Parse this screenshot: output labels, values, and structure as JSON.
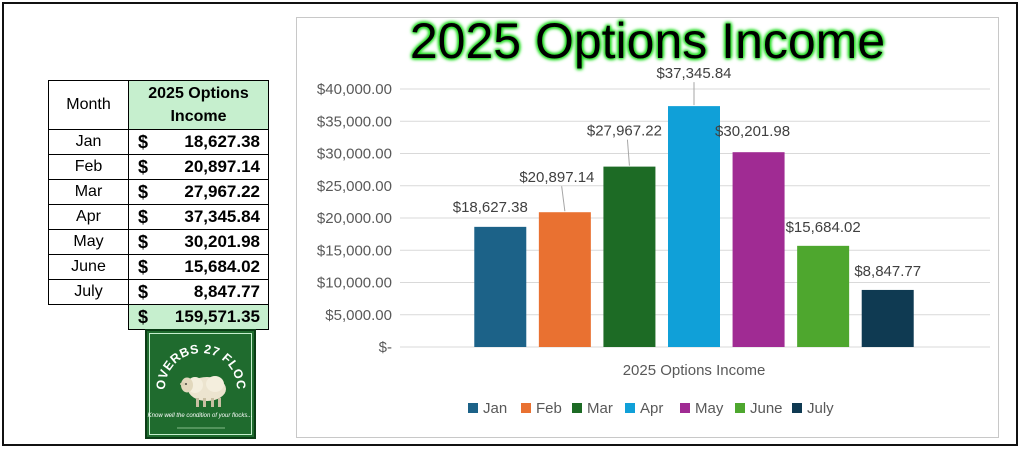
{
  "table": {
    "header_month": "Month",
    "header_value": "2025 Options Income",
    "currency_symbol": "$",
    "rows": [
      {
        "month": "Jan",
        "value": "18,627.38"
      },
      {
        "month": "Feb",
        "value": "20,897.14"
      },
      {
        "month": "Mar",
        "value": "27,967.22"
      },
      {
        "month": "Apr",
        "value": "37,345.84"
      },
      {
        "month": "May",
        "value": "30,201.98"
      },
      {
        "month": "June",
        "value": "15,684.02"
      },
      {
        "month": "July",
        "value": "8,847.77"
      }
    ],
    "total": "159,571.35"
  },
  "logo": {
    "name": "PROVERBS 27 FLOCKS",
    "tagline": "Know well the condition of your flocks..."
  },
  "chart_data": {
    "type": "bar",
    "title": "2025 Options Income",
    "xlabel": "2025 Options Income",
    "ylabel": "",
    "ylim": [
      0,
      40000
    ],
    "yticks": [
      0,
      5000,
      10000,
      15000,
      20000,
      25000,
      30000,
      35000,
      40000
    ],
    "ytick_labels": [
      "$-",
      "$5,000.00",
      "$10,000.00",
      "$15,000.00",
      "$20,000.00",
      "$25,000.00",
      "$30,000.00",
      "$35,000.00",
      "$40,000.00"
    ],
    "grid": true,
    "legend_position": "bottom",
    "categories": [
      "2025 Options Income"
    ],
    "series": [
      {
        "name": "Jan",
        "value": 18627.38,
        "label": "$18,627.38",
        "color": "#1c6288"
      },
      {
        "name": "Feb",
        "value": 20897.14,
        "label": "$20,897.14",
        "color": "#e97131"
      },
      {
        "name": "Mar",
        "value": 27967.22,
        "label": "$27,967.22",
        "color": "#1d6b25"
      },
      {
        "name": "Apr",
        "value": 37345.84,
        "label": "$37,345.84",
        "color": "#10a0d8"
      },
      {
        "name": "May",
        "value": 30201.98,
        "label": "$30,201.98",
        "color": "#a02b93"
      },
      {
        "name": "June",
        "value": 15684.02,
        "label": "$15,684.02",
        "color": "#4ea72e"
      },
      {
        "name": "July",
        "value": 8847.77,
        "label": "$8,847.77",
        "color": "#0f3a52"
      }
    ]
  }
}
